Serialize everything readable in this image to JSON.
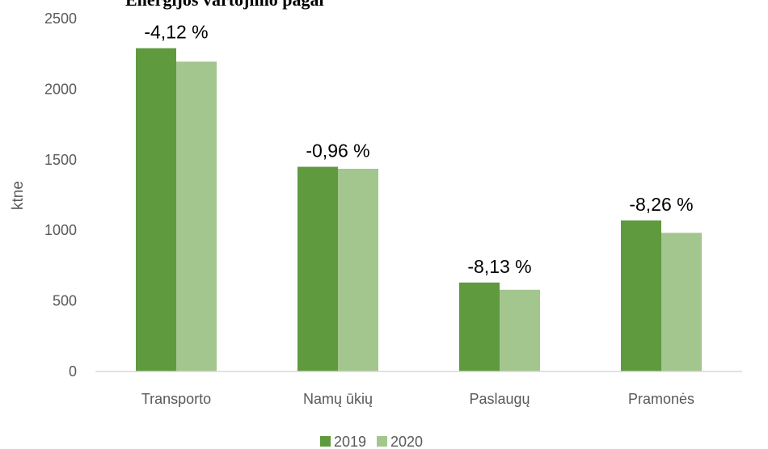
{
  "chart_data": {
    "type": "bar",
    "title": "Energijos vartojimo pagal",
    "xlabel": "",
    "ylabel": "ktne",
    "ylim": [
      0,
      2500
    ],
    "yticks": [
      0,
      500,
      1000,
      1500,
      2000,
      2500
    ],
    "categories": [
      "Transporto",
      "Namų ūkių",
      "Paslaugų",
      "Pramonės"
    ],
    "series": [
      {
        "name": "2019",
        "color": "#5f9a3e",
        "values": [
          2290,
          1450,
          630,
          1070
        ]
      },
      {
        "name": "2020",
        "color": "#a3c58e",
        "values": [
          2195,
          1436,
          579,
          982
        ]
      }
    ],
    "data_labels": [
      "-4,12 %",
      "-0,96 %",
      "-8,13 %",
      "-8,26 %"
    ],
    "legend": "bottom-center",
    "grid": false
  }
}
